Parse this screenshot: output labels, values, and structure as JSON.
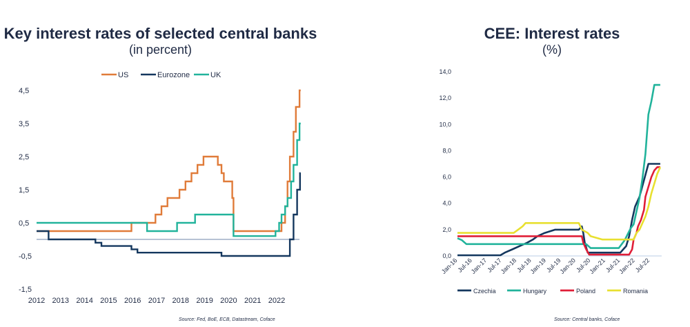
{
  "left": {
    "title": "Key interest rates of selected central banks",
    "subtitle": "(in percent)",
    "source": "Source: Fed, BoE, ECB, Datastream, Coface"
  },
  "right": {
    "title": "CEE: Interest rates",
    "subtitle": "(%)",
    "source": "Source: Central banks, Coface"
  },
  "chart_data": [
    {
      "type": "line",
      "title": "Key interest rates of selected central banks",
      "subtitle": "(in percent)",
      "xlim": [
        2012,
        2023
      ],
      "x_ticks": [
        "2012",
        "2013",
        "2014",
        "2015",
        "2016",
        "2017",
        "2018",
        "2019",
        "2020",
        "2021",
        "2022"
      ],
      "ylim": [
        -1.5,
        4.5
      ],
      "y_ticks": [
        "4,5",
        "3,5",
        "2,5",
        "1,5",
        "0,5",
        "-0,5",
        "-1,5"
      ],
      "legend_position": "top",
      "step": true,
      "series": [
        {
          "name": "US",
          "color": "#e07b39",
          "points": [
            [
              2012.0,
              0.25
            ],
            [
              2015.95,
              0.25
            ],
            [
              2015.95,
              0.5
            ],
            [
              2016.95,
              0.5
            ],
            [
              2016.95,
              0.75
            ],
            [
              2017.2,
              0.75
            ],
            [
              2017.2,
              1.0
            ],
            [
              2017.45,
              1.0
            ],
            [
              2017.45,
              1.25
            ],
            [
              2017.95,
              1.25
            ],
            [
              2017.95,
              1.5
            ],
            [
              2018.2,
              1.5
            ],
            [
              2018.2,
              1.75
            ],
            [
              2018.45,
              1.75
            ],
            [
              2018.45,
              2.0
            ],
            [
              2018.7,
              2.0
            ],
            [
              2018.7,
              2.25
            ],
            [
              2018.95,
              2.25
            ],
            [
              2018.95,
              2.5
            ],
            [
              2019.55,
              2.5
            ],
            [
              2019.55,
              2.25
            ],
            [
              2019.7,
              2.25
            ],
            [
              2019.7,
              2.0
            ],
            [
              2019.8,
              2.0
            ],
            [
              2019.8,
              1.75
            ],
            [
              2020.15,
              1.75
            ],
            [
              2020.15,
              1.25
            ],
            [
              2020.2,
              1.25
            ],
            [
              2020.2,
              0.25
            ],
            [
              2022.2,
              0.25
            ],
            [
              2022.2,
              0.5
            ],
            [
              2022.35,
              0.5
            ],
            [
              2022.35,
              1.0
            ],
            [
              2022.45,
              1.0
            ],
            [
              2022.45,
              1.75
            ],
            [
              2022.55,
              1.75
            ],
            [
              2022.55,
              2.5
            ],
            [
              2022.7,
              2.5
            ],
            [
              2022.7,
              3.25
            ],
            [
              2022.8,
              3.25
            ],
            [
              2022.8,
              4.0
            ],
            [
              2022.95,
              4.0
            ],
            [
              2022.95,
              4.5
            ],
            [
              2023.0,
              4.5
            ]
          ]
        },
        {
          "name": "Eurozone",
          "color": "#14375e",
          "points": [
            [
              2012.0,
              0.25
            ],
            [
              2012.5,
              0.25
            ],
            [
              2012.5,
              0.0
            ],
            [
              2014.45,
              0.0
            ],
            [
              2014.45,
              -0.1
            ],
            [
              2014.7,
              -0.1
            ],
            [
              2014.7,
              -0.2
            ],
            [
              2015.95,
              -0.2
            ],
            [
              2015.95,
              -0.3
            ],
            [
              2016.2,
              -0.3
            ],
            [
              2016.2,
              -0.4
            ],
            [
              2019.7,
              -0.4
            ],
            [
              2019.7,
              -0.5
            ],
            [
              2022.55,
              -0.5
            ],
            [
              2022.55,
              0.0
            ],
            [
              2022.7,
              0.0
            ],
            [
              2022.7,
              0.75
            ],
            [
              2022.85,
              0.75
            ],
            [
              2022.85,
              1.5
            ],
            [
              2022.97,
              1.5
            ],
            [
              2022.97,
              2.0
            ],
            [
              2023.0,
              2.0
            ]
          ]
        },
        {
          "name": "UK",
          "color": "#21b39b",
          "points": [
            [
              2012.0,
              0.5
            ],
            [
              2016.6,
              0.5
            ],
            [
              2016.6,
              0.25
            ],
            [
              2017.85,
              0.25
            ],
            [
              2017.85,
              0.5
            ],
            [
              2018.6,
              0.5
            ],
            [
              2018.6,
              0.75
            ],
            [
              2020.2,
              0.75
            ],
            [
              2020.2,
              0.1
            ],
            [
              2021.95,
              0.1
            ],
            [
              2021.95,
              0.25
            ],
            [
              2022.1,
              0.25
            ],
            [
              2022.1,
              0.5
            ],
            [
              2022.2,
              0.5
            ],
            [
              2022.2,
              0.75
            ],
            [
              2022.35,
              0.75
            ],
            [
              2022.35,
              1.0
            ],
            [
              2022.45,
              1.0
            ],
            [
              2022.45,
              1.25
            ],
            [
              2022.6,
              1.25
            ],
            [
              2022.6,
              1.75
            ],
            [
              2022.7,
              1.75
            ],
            [
              2022.7,
              2.25
            ],
            [
              2022.85,
              2.25
            ],
            [
              2022.85,
              3.0
            ],
            [
              2022.95,
              3.0
            ],
            [
              2022.95,
              3.5
            ],
            [
              2023.0,
              3.5
            ]
          ]
        }
      ]
    },
    {
      "type": "line",
      "title": "CEE: Interest rates",
      "subtitle": "(%)",
      "xlim": [
        2016.0,
        2022.85
      ],
      "x_ticks": [
        "Jan-16",
        "Jul-16",
        "Jan-17",
        "Jul-17",
        "Jan-18",
        "Jul-18",
        "Jan-19",
        "Jul-19",
        "Jan-20",
        "Jul-20",
        "Jan-21",
        "Jul-21",
        "Jan-22",
        "Jul-22"
      ],
      "ylim": [
        0,
        14
      ],
      "y_ticks": [
        "0,0",
        "2,0",
        "4,0",
        "6,0",
        "8,0",
        "10,0",
        "12,0",
        "14,0"
      ],
      "legend_position": "bottom",
      "step": false,
      "series": [
        {
          "name": "Czechia",
          "color": "#14375e",
          "points": [
            [
              2016.0,
              0.05
            ],
            [
              2017.45,
              0.05
            ],
            [
              2017.6,
              0.25
            ],
            [
              2017.85,
              0.5
            ],
            [
              2018.1,
              0.75
            ],
            [
              2018.35,
              1.0
            ],
            [
              2018.55,
              1.25
            ],
            [
              2018.7,
              1.5
            ],
            [
              2018.95,
              1.75
            ],
            [
              2019.3,
              2.0
            ],
            [
              2020.1,
              2.0
            ],
            [
              2020.2,
              2.25
            ],
            [
              2020.25,
              1.75
            ],
            [
              2020.3,
              1.0
            ],
            [
              2020.4,
              0.25
            ],
            [
              2021.5,
              0.25
            ],
            [
              2021.6,
              0.5
            ],
            [
              2021.7,
              0.75
            ],
            [
              2021.8,
              1.5
            ],
            [
              2021.9,
              2.75
            ],
            [
              2022.0,
              3.75
            ],
            [
              2022.15,
              4.5
            ],
            [
              2022.3,
              5.75
            ],
            [
              2022.45,
              7.0
            ],
            [
              2022.85,
              7.0
            ]
          ]
        },
        {
          "name": "Hungary",
          "color": "#21b39b",
          "points": [
            [
              2016.0,
              1.35
            ],
            [
              2016.15,
              1.2
            ],
            [
              2016.3,
              0.9
            ],
            [
              2020.35,
              0.9
            ],
            [
              2020.5,
              0.6
            ],
            [
              2021.45,
              0.6
            ],
            [
              2021.55,
              0.9
            ],
            [
              2021.65,
              1.2
            ],
            [
              2021.75,
              1.65
            ],
            [
              2021.85,
              2.1
            ],
            [
              2021.95,
              2.4
            ],
            [
              2022.05,
              3.4
            ],
            [
              2022.15,
              4.4
            ],
            [
              2022.25,
              5.9
            ],
            [
              2022.35,
              7.75
            ],
            [
              2022.45,
              10.75
            ],
            [
              2022.55,
              11.75
            ],
            [
              2022.65,
              13.0
            ],
            [
              2022.85,
              13.0
            ]
          ]
        },
        {
          "name": "Poland",
          "color": "#e01e37",
          "points": [
            [
              2016.0,
              1.5
            ],
            [
              2020.2,
              1.5
            ],
            [
              2020.25,
              1.0
            ],
            [
              2020.35,
              0.5
            ],
            [
              2020.45,
              0.1
            ],
            [
              2021.8,
              0.1
            ],
            [
              2021.9,
              0.5
            ],
            [
              2021.95,
              1.25
            ],
            [
              2022.05,
              1.75
            ],
            [
              2022.1,
              2.25
            ],
            [
              2022.2,
              2.75
            ],
            [
              2022.3,
              3.5
            ],
            [
              2022.35,
              4.5
            ],
            [
              2022.45,
              5.25
            ],
            [
              2022.55,
              6.0
            ],
            [
              2022.65,
              6.5
            ],
            [
              2022.75,
              6.75
            ],
            [
              2022.85,
              6.75
            ]
          ]
        },
        {
          "name": "Romania",
          "color": "#e8e030",
          "points": [
            [
              2016.0,
              1.75
            ],
            [
              2017.9,
              1.75
            ],
            [
              2018.05,
              2.0
            ],
            [
              2018.2,
              2.25
            ],
            [
              2018.3,
              2.5
            ],
            [
              2020.1,
              2.5
            ],
            [
              2020.2,
              2.0
            ],
            [
              2020.4,
              1.75
            ],
            [
              2020.5,
              1.5
            ],
            [
              2020.9,
              1.25
            ],
            [
              2021.95,
              1.25
            ],
            [
              2022.05,
              1.75
            ],
            [
              2022.15,
              2.0
            ],
            [
              2022.25,
              2.5
            ],
            [
              2022.35,
              3.0
            ],
            [
              2022.45,
              3.75
            ],
            [
              2022.55,
              4.75
            ],
            [
              2022.65,
              5.5
            ],
            [
              2022.75,
              6.25
            ],
            [
              2022.85,
              6.75
            ]
          ]
        }
      ]
    }
  ]
}
